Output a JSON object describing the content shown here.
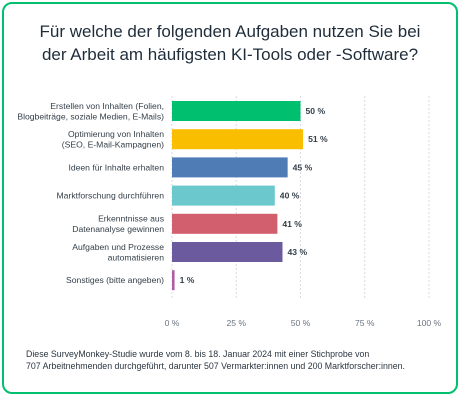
{
  "title_lines": [
    "Für welche der folgenden Aufgaben nutzen Sie bei",
    "der Arbeit am häufigsten KI-Tools oder -Software?"
  ],
  "footnote_lines": [
    "Diese SurveyMonkey-Studie wurde vom 8. bis 18. Januar 2024 mit einer Stichprobe von",
    "707 Arbeitnehmenden durchgeführt, darunter 507 Vermarkter:innen und 200 Marktforscher:innen."
  ],
  "chart_data": {
    "type": "bar",
    "orientation": "horizontal",
    "categories": [
      [
        "Erstellen von Inhalten (Folien,",
        "Blogbeiträge, soziale Medien, E-Mails)"
      ],
      [
        "Optimierung von Inhalten",
        "(SEO, E-Mail-Kampagnen)"
      ],
      [
        "Ideen für Inhalte erhalten"
      ],
      [
        "Marktforschung durchführen"
      ],
      [
        "Erkenntnisse aus",
        "Datenanalyse gewinnen"
      ],
      [
        "Aufgaben und Prozesse",
        "automatisieren"
      ],
      [
        "Sonstiges (bitte angeben)"
      ]
    ],
    "values": [
      50,
      51,
      45,
      40,
      41,
      43,
      1
    ],
    "value_labels": [
      "50 %",
      "51 %",
      "45 %",
      "40 %",
      "41 %",
      "43 %",
      "1 %"
    ],
    "colors": [
      "#00bf6f",
      "#f9be00",
      "#507cb6",
      "#6bc8cd",
      "#d25f6e",
      "#6b5b9e",
      "#ad5fa2"
    ],
    "xlim": [
      0,
      100
    ],
    "xticks": [
      0,
      25,
      50,
      75,
      100
    ],
    "xtick_labels": [
      "0 %",
      "25 %",
      "50 %",
      "75 %",
      "100 %"
    ],
    "grid": true
  }
}
